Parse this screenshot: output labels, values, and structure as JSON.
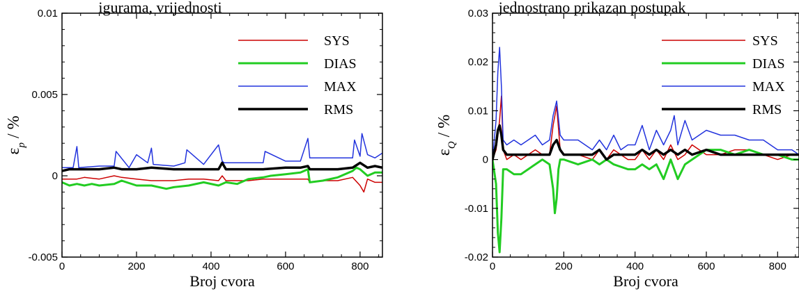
{
  "header_left": "igurama, vrijednosti",
  "header_right": "jednostrano prikazan postupak",
  "chart_data": [
    {
      "type": "line",
      "xlabel": "Broj cvora",
      "ylabel": "ε_p / %",
      "ylabel_symbol": "ε",
      "ylabel_sub": "p",
      "ylabel_unit": " / %",
      "xlim": [
        0,
        860
      ],
      "ylim": [
        -0.005,
        0.01
      ],
      "xticks": [
        0,
        200,
        400,
        600,
        800
      ],
      "yticks": [
        -0.005,
        0,
        0.005,
        0.01
      ],
      "ytick_labels": [
        "-0.005",
        "0",
        "0.005",
        "0.01"
      ],
      "xtick_labels": [
        "0",
        "200",
        "400",
        "600",
        "800"
      ],
      "legend_position": "top-right",
      "series": [
        {
          "name": "SYS",
          "color": "#cc0000",
          "width": 1.5,
          "x": [
            0,
            40,
            60,
            100,
            140,
            160,
            200,
            240,
            280,
            300,
            340,
            380,
            420,
            430,
            440,
            500,
            540,
            580,
            620,
            660,
            665,
            700,
            740,
            780,
            800,
            810,
            820,
            840,
            860
          ],
          "y": [
            -0.0002,
            -0.0002,
            -0.0001,
            -0.0002,
            0.0,
            -0.0001,
            -0.0002,
            -0.0003,
            -0.0003,
            -0.0003,
            -0.0002,
            -0.0002,
            -0.0003,
            0.0,
            -0.0003,
            -0.0003,
            -0.0002,
            -0.0002,
            -0.0002,
            -0.0002,
            -0.0004,
            -0.0003,
            -0.0003,
            -0.0001,
            -0.0006,
            -0.001,
            -0.0002,
            -0.0004,
            -0.0004
          ]
        },
        {
          "name": "DIAS",
          "color": "#22cc22",
          "width": 3,
          "x": [
            0,
            20,
            40,
            60,
            80,
            100,
            140,
            160,
            200,
            240,
            280,
            300,
            340,
            380,
            420,
            440,
            470,
            500,
            540,
            560,
            600,
            640,
            660,
            665,
            700,
            740,
            780,
            790,
            800,
            820,
            840,
            860
          ],
          "y": [
            -0.0004,
            -0.0006,
            -0.0005,
            -0.0006,
            -0.0005,
            -0.0006,
            -0.0005,
            -0.0003,
            -0.0006,
            -0.0006,
            -0.0008,
            -0.0007,
            -0.0006,
            -0.0004,
            -0.0006,
            -0.0004,
            -0.0005,
            -0.0002,
            -0.0001,
            0.0,
            0.0001,
            0.0002,
            0.0004,
            -0.0004,
            -0.0003,
            -0.0001,
            0.0003,
            0.0005,
            0.0004,
            0.0,
            0.0002,
            0.0002
          ]
        },
        {
          "name": "MAX",
          "color": "#2233dd",
          "width": 1.5,
          "x": [
            0,
            30,
            40,
            45,
            100,
            140,
            145,
            180,
            200,
            230,
            240,
            245,
            300,
            330,
            335,
            380,
            420,
            430,
            435,
            500,
            540,
            545,
            600,
            640,
            660,
            665,
            700,
            740,
            780,
            785,
            800,
            805,
            820,
            840,
            860
          ],
          "y": [
            0.0005,
            0.0005,
            0.0018,
            0.0005,
            0.0006,
            0.0006,
            0.0015,
            0.0005,
            0.0013,
            0.0008,
            0.0017,
            0.0007,
            0.0006,
            0.0008,
            0.0016,
            0.0007,
            0.0019,
            0.0009,
            0.0008,
            0.0008,
            0.0008,
            0.0015,
            0.0009,
            0.0009,
            0.0023,
            0.0011,
            0.0011,
            0.0011,
            0.0011,
            0.0022,
            0.0012,
            0.0026,
            0.0013,
            0.0011,
            0.0014
          ]
        },
        {
          "name": "RMS",
          "color": "#000000",
          "width": 3.5,
          "x": [
            0,
            20,
            40,
            60,
            100,
            140,
            160,
            200,
            240,
            300,
            340,
            380,
            420,
            430,
            440,
            500,
            540,
            600,
            640,
            660,
            665,
            700,
            740,
            780,
            800,
            820,
            840,
            860
          ],
          "y": [
            0.0003,
            0.0004,
            0.0004,
            0.0004,
            0.0004,
            0.0005,
            0.0004,
            0.0004,
            0.0005,
            0.0004,
            0.0004,
            0.0004,
            0.0004,
            0.0008,
            0.0004,
            0.0004,
            0.0004,
            0.0005,
            0.0005,
            0.0006,
            0.0004,
            0.0004,
            0.0004,
            0.0005,
            0.0008,
            0.0005,
            0.0006,
            0.0005
          ]
        }
      ]
    },
    {
      "type": "line",
      "xlabel": "Broj cvora",
      "ylabel": "ε_Q / %",
      "ylabel_symbol": "ε",
      "ylabel_sub": "Q",
      "ylabel_unit": " / %",
      "xlim": [
        0,
        860
      ],
      "ylim": [
        -0.02,
        0.03
      ],
      "xticks": [
        0,
        200,
        400,
        600,
        800
      ],
      "yticks": [
        -0.02,
        -0.01,
        0,
        0.01,
        0.02,
        0.03
      ],
      "ytick_labels": [
        "-0.02",
        "-0.01",
        "0",
        "0.01",
        "0.02",
        "0.03"
      ],
      "xtick_labels": [
        "0",
        "200",
        "400",
        "600",
        "800"
      ],
      "legend_position": "top-right",
      "series": [
        {
          "name": "SYS",
          "color": "#cc0000",
          "width": 1.5,
          "x": [
            0,
            10,
            20,
            25,
            30,
            40,
            60,
            80,
            100,
            120,
            140,
            160,
            170,
            180,
            190,
            200,
            240,
            280,
            300,
            320,
            340,
            360,
            380,
            400,
            420,
            440,
            460,
            480,
            500,
            520,
            540,
            560,
            600,
            640,
            680,
            720,
            760,
            800,
            840,
            860
          ],
          "y": [
            0.0,
            0.002,
            0.008,
            0.013,
            0.002,
            0.0,
            0.001,
            0.0,
            0.001,
            0.002,
            0.001,
            0.001,
            0.007,
            0.011,
            0.002,
            0.001,
            0.001,
            0.0,
            0.002,
            0.0,
            0.002,
            0.001,
            0.0,
            0.0,
            0.002,
            0.0,
            0.002,
            0.0,
            0.003,
            0.0,
            0.001,
            0.003,
            0.001,
            0.001,
            0.002,
            0.002,
            0.001,
            0.0,
            0.001,
            0.001
          ]
        },
        {
          "name": "DIAS",
          "color": "#22cc22",
          "width": 3,
          "x": [
            0,
            10,
            15,
            20,
            25,
            30,
            40,
            60,
            80,
            100,
            140,
            160,
            170,
            175,
            180,
            185,
            190,
            200,
            240,
            280,
            300,
            320,
            340,
            380,
            400,
            420,
            440,
            460,
            480,
            500,
            520,
            540,
            560,
            600,
            640,
            680,
            720,
            760,
            800,
            840,
            860
          ],
          "y": [
            0.0,
            -0.005,
            -0.015,
            -0.019,
            -0.012,
            -0.002,
            -0.002,
            -0.003,
            -0.003,
            -0.002,
            0.0,
            -0.001,
            -0.006,
            -0.011,
            -0.008,
            -0.002,
            0.0,
            0.0,
            -0.001,
            0.0,
            -0.001,
            0.0,
            -0.001,
            -0.002,
            -0.002,
            -0.001,
            -0.002,
            -0.001,
            -0.004,
            0.0,
            -0.004,
            -0.001,
            0.0,
            0.002,
            0.002,
            0.001,
            0.002,
            0.001,
            0.001,
            0.0,
            0.0
          ]
        },
        {
          "name": "MAX",
          "color": "#2233dd",
          "width": 1.5,
          "x": [
            0,
            10,
            15,
            20,
            25,
            30,
            40,
            60,
            80,
            100,
            120,
            140,
            160,
            170,
            180,
            190,
            200,
            240,
            280,
            300,
            320,
            340,
            360,
            380,
            400,
            420,
            440,
            460,
            480,
            500,
            510,
            520,
            540,
            560,
            600,
            640,
            680,
            720,
            760,
            800,
            840,
            860
          ],
          "y": [
            0.0,
            0.008,
            0.018,
            0.023,
            0.015,
            0.004,
            0.003,
            0.004,
            0.003,
            0.004,
            0.005,
            0.003,
            0.004,
            0.009,
            0.012,
            0.005,
            0.004,
            0.004,
            0.002,
            0.004,
            0.002,
            0.005,
            0.002,
            0.003,
            0.003,
            0.007,
            0.002,
            0.006,
            0.003,
            0.006,
            0.009,
            0.003,
            0.008,
            0.004,
            0.006,
            0.005,
            0.005,
            0.004,
            0.004,
            0.002,
            0.002,
            0.001
          ]
        },
        {
          "name": "RMS",
          "color": "#000000",
          "width": 3.5,
          "x": [
            0,
            10,
            15,
            20,
            25,
            30,
            40,
            60,
            80,
            100,
            140,
            160,
            170,
            180,
            190,
            200,
            240,
            280,
            300,
            320,
            340,
            380,
            400,
            420,
            440,
            460,
            480,
            500,
            520,
            540,
            560,
            600,
            640,
            680,
            720,
            760,
            800,
            840,
            860
          ],
          "y": [
            0.0,
            0.003,
            0.006,
            0.007,
            0.005,
            0.002,
            0.001,
            0.001,
            0.001,
            0.001,
            0.001,
            0.001,
            0.003,
            0.004,
            0.002,
            0.001,
            0.001,
            0.001,
            0.002,
            0.0,
            0.001,
            0.001,
            0.001,
            0.002,
            0.001,
            0.002,
            0.001,
            0.002,
            0.001,
            0.002,
            0.001,
            0.002,
            0.001,
            0.001,
            0.001,
            0.001,
            0.001,
            0.001,
            0.001
          ]
        }
      ]
    }
  ]
}
